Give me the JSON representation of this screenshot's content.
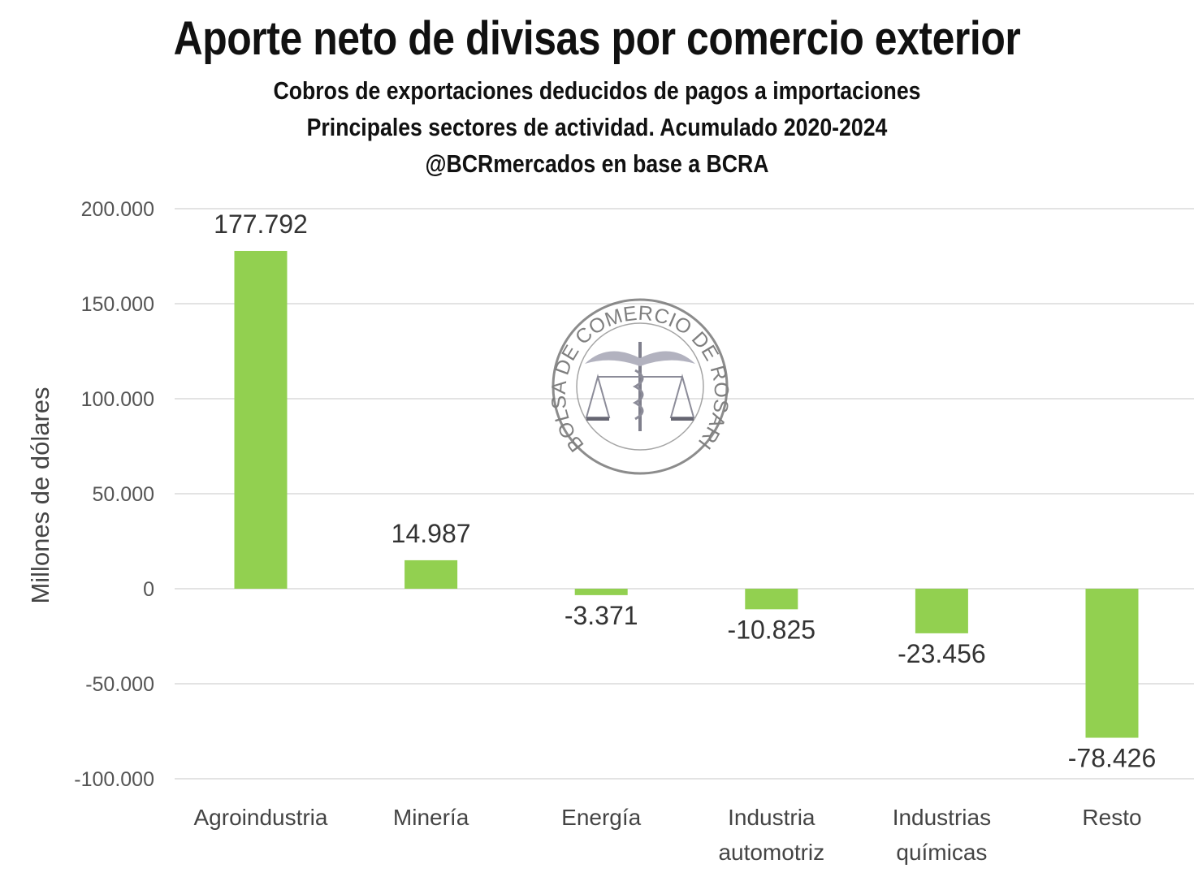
{
  "chart_data": {
    "type": "bar",
    "title": "Aporte neto de divisas por comercio exterior",
    "subtitle": [
      "Cobros de exportaciones deducidos de pagos a importaciones",
      "Principales sectores de actividad. Acumulado 2020-2024",
      "@BCRmercados en base a BCRA"
    ],
    "categories": [
      [
        "Agroindustria"
      ],
      [
        "Minería"
      ],
      [
        "Energía"
      ],
      [
        "Industria",
        "automotriz"
      ],
      [
        "Industrias",
        "químicas"
      ],
      [
        "Resto"
      ]
    ],
    "values": [
      177792,
      14987,
      -3371,
      -10825,
      -23456,
      -78426
    ],
    "value_labels": [
      "177.792",
      "14.987",
      "-3.371",
      "-10.825",
      "-23.456",
      "-78.426"
    ],
    "ylabel": "Millones de dólares",
    "xlabel": "",
    "ylim": [
      -100000,
      200000
    ],
    "yticks": [
      200000,
      150000,
      100000,
      50000,
      0,
      -50000,
      -100000
    ],
    "ytick_labels": [
      "200.000",
      "150.000",
      "100.000",
      "50.000",
      "0",
      "-50.000",
      "-100.000"
    ],
    "grid": true,
    "bar_color": "#92d050",
    "grid_color": "#e3e3e3"
  },
  "watermark": {
    "text": "BOLSA DE COMERCIO DE ROSARIO"
  }
}
